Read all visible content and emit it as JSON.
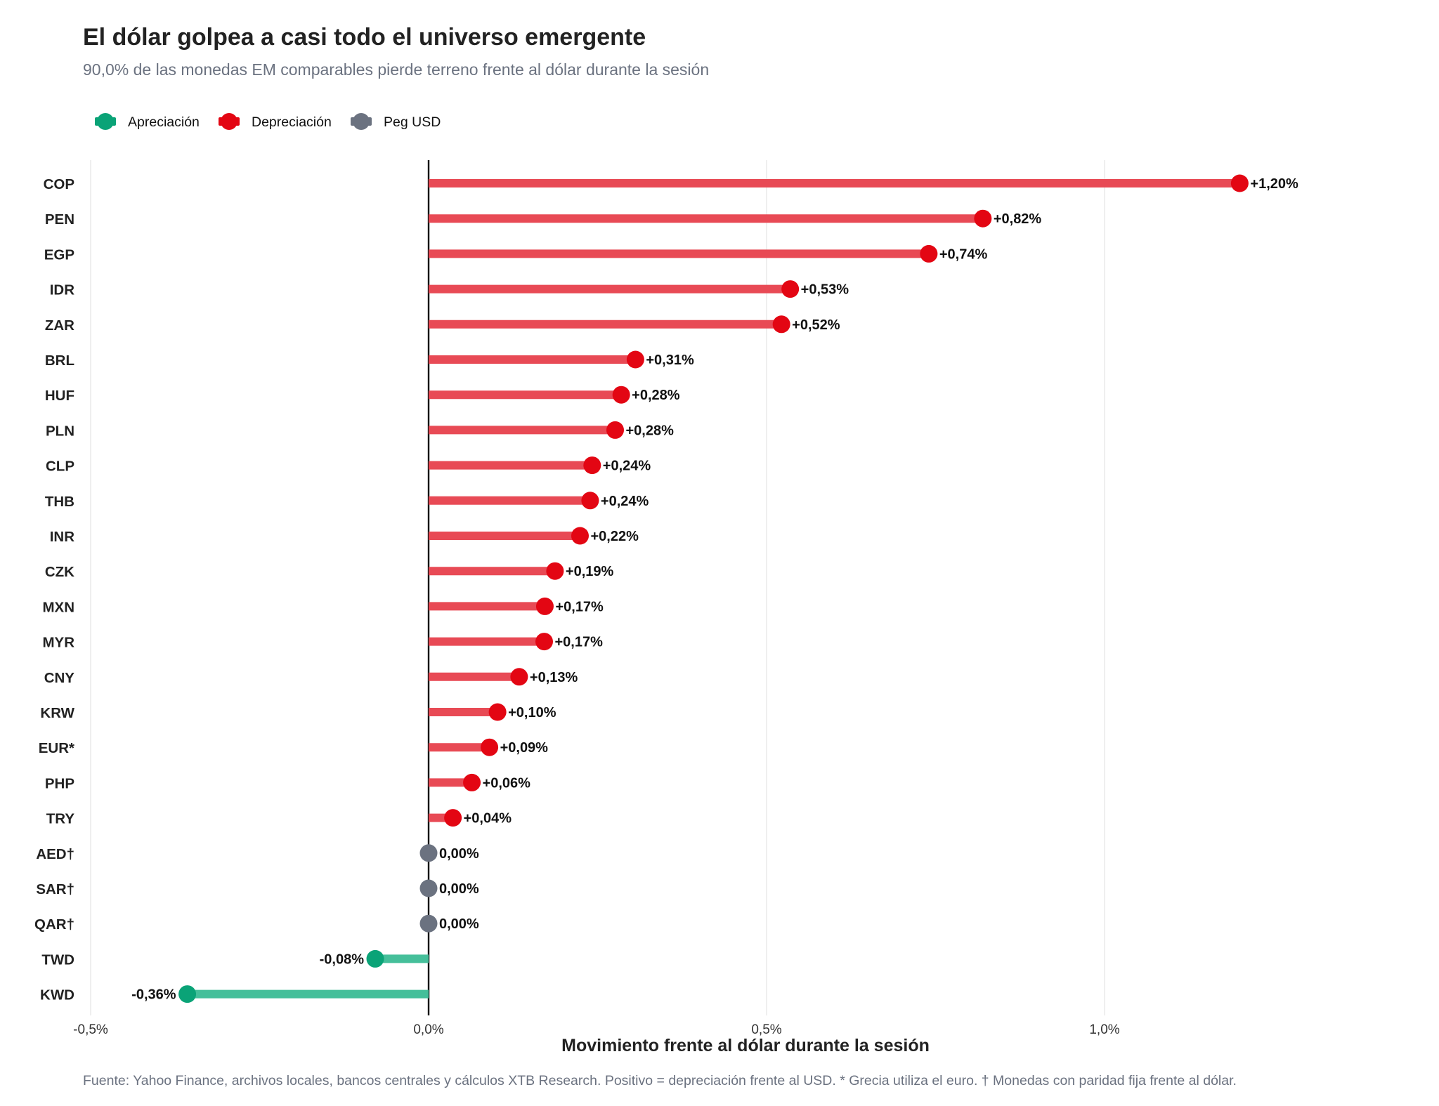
{
  "chart_data": {
    "type": "lollipop",
    "title": "El dólar golpea a casi todo el universo emergente",
    "subtitle": "90,0% de las monedas EM comparables pierde terreno frente al dólar durante la sesión",
    "xlabel": "Movimiento frente al dólar durante la sesión",
    "ylabel": "",
    "xlim": [
      -0.5,
      1.5
    ],
    "x_ticks": [
      -0.5,
      0.0,
      0.5,
      1.0
    ],
    "x_tick_labels": [
      "-0,5%",
      "0,0%",
      "0,5%",
      "1,0%"
    ],
    "grid": "vertical",
    "legend_position": "top-left",
    "legend": [
      {
        "key": "apreciacion",
        "label": "Apreciación",
        "color": "#0aa377"
      },
      {
        "key": "depreciacion",
        "label": "Depreciación",
        "color": "#e30613"
      },
      {
        "key": "peg",
        "label": "Peg USD",
        "color": "#6b7280"
      }
    ],
    "stem_colors": {
      "apreciacion": "#45bf9a",
      "depreciacion": "#e84a55",
      "peg": "#6b7280"
    },
    "categories": [
      "COP",
      "PEN",
      "EGP",
      "IDR",
      "ZAR",
      "BRL",
      "HUF",
      "PLN",
      "CLP",
      "THB",
      "INR",
      "CZK",
      "MXN",
      "MYR",
      "CNY",
      "KRW",
      "EUR*",
      "PHP",
      "TRY",
      "AED†",
      "SAR†",
      "QAR†",
      "TWD",
      "KWD"
    ],
    "values": [
      1.2,
      0.82,
      0.74,
      0.535,
      0.522,
      0.306,
      0.285,
      0.276,
      0.242,
      0.239,
      0.224,
      0.187,
      0.172,
      0.171,
      0.134,
      0.102,
      0.09,
      0.064,
      0.036,
      0.0,
      0.0,
      0.0,
      -0.079,
      -0.357
    ],
    "value_labels": [
      "+1,20%",
      "+0,82%",
      "+0,74%",
      "+0,53%",
      "+0,52%",
      "+0,31%",
      "+0,28%",
      "+0,28%",
      "+0,24%",
      "+0,24%",
      "+0,22%",
      "+0,19%",
      "+0,17%",
      "+0,17%",
      "+0,13%",
      "+0,10%",
      "+0,09%",
      "+0,06%",
      "+0,04%",
      "0,00%",
      "0,00%",
      "0,00%",
      "-0,08%",
      "-0,36%"
    ],
    "groups": [
      "depreciacion",
      "depreciacion",
      "depreciacion",
      "depreciacion",
      "depreciacion",
      "depreciacion",
      "depreciacion",
      "depreciacion",
      "depreciacion",
      "depreciacion",
      "depreciacion",
      "depreciacion",
      "depreciacion",
      "depreciacion",
      "depreciacion",
      "depreciacion",
      "depreciacion",
      "depreciacion",
      "depreciacion",
      "peg",
      "peg",
      "peg",
      "apreciacion",
      "apreciacion"
    ]
  },
  "footnote": "Fuente: Yahoo Finance, archivos locales, bancos centrales y cálculos XTB Research. Positivo = depreciación frente al USD. * Grecia utiliza el euro. † Monedas con paridad fija frente al dólar."
}
